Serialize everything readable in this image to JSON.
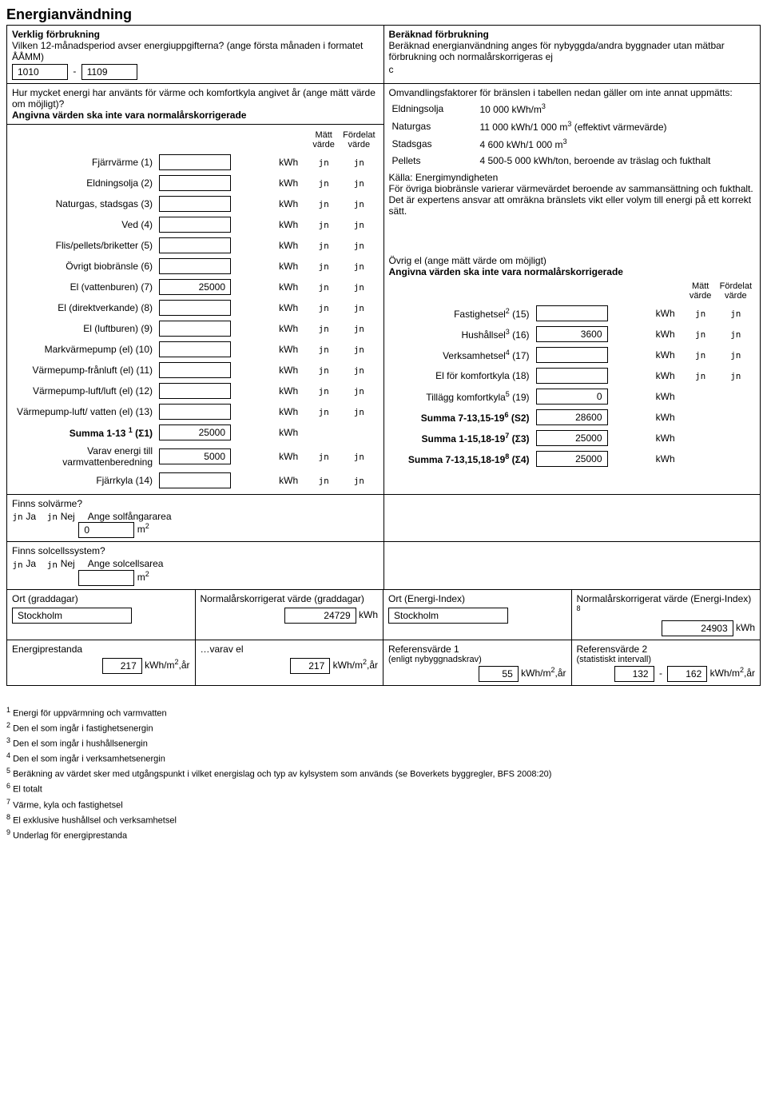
{
  "title": "Energianvändning",
  "left_header": {
    "sub1": "Verklig förbrukning",
    "sub2": "Vilken 12-månadsperiod avser energiuppgifterna? (ange första månaden i formatet ÅÅMM)",
    "period_from": "1010",
    "period_sep": "-",
    "period_to": "1109"
  },
  "right_header": {
    "sub1": "Beräknad förbrukning",
    "sub2": "Beräknad energianvändning anges för nybyggda/andra byggnader utan mätbar förbrukning och normalårskorrigeras ej",
    "mark": "c"
  },
  "left_block2": {
    "line1": "Hur mycket energi har använts för värme och komfortkyla angivet år (ange mätt värde om möjligt)?",
    "line2": "Angivna värden ska inte vara normalårskorrigerade",
    "col_matt": "Mätt värde",
    "col_ford": "Fördelat värde"
  },
  "energy_rows_left": [
    {
      "label": "Fjärrvärme (1)",
      "value": "",
      "unit": "kWh"
    },
    {
      "label": "Eldningsolja (2)",
      "value": "",
      "unit": "kWh"
    },
    {
      "label": "Naturgas, stadsgas (3)",
      "value": "",
      "unit": "kWh"
    },
    {
      "label": "Ved (4)",
      "value": "",
      "unit": "kWh"
    },
    {
      "label": "Flis/pellets/briketter (5)",
      "value": "",
      "unit": "kWh"
    },
    {
      "label": "Övrigt biobränsle (6)",
      "value": "",
      "unit": "kWh"
    },
    {
      "label": "El (vattenburen) (7)",
      "value": "25000",
      "unit": "kWh"
    },
    {
      "label": "El (direktverkande) (8)",
      "value": "",
      "unit": "kWh"
    },
    {
      "label": "El (luftburen) (9)",
      "value": "",
      "unit": "kWh"
    },
    {
      "label": "Markvärmepump (el) (10)",
      "value": "",
      "unit": "kWh"
    },
    {
      "label": "Värmepump-frånluft (el) (11)",
      "value": "",
      "unit": "kWh"
    },
    {
      "label": "Värmepump-luft/luft (el) (12)",
      "value": "",
      "unit": "kWh"
    },
    {
      "label": "Värmepump-luft/ vatten (el) (13)",
      "value": "",
      "unit": "kWh"
    }
  ],
  "summa_left": {
    "label": "Summa 1-13 ",
    "sup": "1",
    "sigma": "(Σ1)",
    "value": "25000",
    "unit": "kWh"
  },
  "varav": {
    "label": "Varav energi till varmvattenberedning",
    "value": "5000",
    "unit": "kWh"
  },
  "fjarrkyla": {
    "label": "Fjärrkyla (14)",
    "value": "",
    "unit": "kWh"
  },
  "conv_header": "Omvandlingsfaktorer för bränslen i tabellen nedan gäller om inte annat uppmätts:",
  "conv_rows": [
    {
      "fuel": "Eldningsolja",
      "factor": "10 000 kWh/m",
      "exp": "3",
      "tail": ""
    },
    {
      "fuel": "Naturgas",
      "factor": "11 000 kWh/1 000 m",
      "exp": "3",
      "tail": " (effektivt värmevärde)"
    },
    {
      "fuel": "Stadsgas",
      "factor": "4 600 kWh/1 000 m",
      "exp": "3",
      "tail": ""
    },
    {
      "fuel": "Pellets",
      "factor": "4 500-5 000 kWh/ton, beroende av träslag och fukthalt",
      "exp": "",
      "tail": ""
    }
  ],
  "source_block": {
    "line1": "Källa: Energimyndigheten",
    "line2": "För övriga biobränsle varierar värmevärdet beroende av sammansättning och fukthalt. Det är expertens ansvar att omräkna bränslets vikt eller volym till energi på ett korrekt sätt."
  },
  "ovrig_el": {
    "line1": "Övrig el (ange mätt värde om möjligt)",
    "line2": "Angivna värden ska inte vara normalårskorrigerade",
    "col_matt": "Mätt värde",
    "col_ford": "Fördelat värde"
  },
  "energy_rows_right": [
    {
      "label": "Fastighetsel",
      "sup": "2",
      "tail": " (15)",
      "value": "",
      "unit": "kWh",
      "radios": true
    },
    {
      "label": "Hushållsel",
      "sup": "3",
      "tail": " (16)",
      "value": "3600",
      "unit": "kWh",
      "radios": true
    },
    {
      "label": "Verksamhetsel",
      "sup": "4",
      "tail": " (17)",
      "value": "",
      "unit": "kWh",
      "radios": true
    },
    {
      "label": "El för komfortkyla (18)",
      "sup": "",
      "tail": "",
      "value": "",
      "unit": "kWh",
      "radios": true
    },
    {
      "label": "Tillägg komfortkyla",
      "sup": "5",
      "tail": " (19)",
      "value": "0",
      "unit": "kWh",
      "radios": false
    },
    {
      "label": "Summa 7-13,15-19",
      "sup": "6",
      "tail": " (S2)",
      "value": "28600",
      "unit": "kWh",
      "radios": false,
      "bold": true
    },
    {
      "label": "Summa 1-15,18-19",
      "sup": "7",
      "tail": " (Σ3)",
      "value": "25000",
      "unit": "kWh",
      "radios": false,
      "bold": true
    },
    {
      "label": "Summa 7-13,15,18-19",
      "sup": "8",
      "tail": " (Σ4)",
      "value": "25000",
      "unit": "kWh",
      "radios": false,
      "bold": true
    }
  ],
  "solvarme": {
    "q": "Finns solvärme?",
    "ja": "Ja",
    "nej": "Nej",
    "area_lbl": "Ange solfångararea",
    "area_val": "0",
    "area_unit": "m",
    "area_exp": "2"
  },
  "solcell": {
    "q": "Finns solcellssystem?",
    "ja": "Ja",
    "nej": "Nej",
    "area_lbl": "Ange solcellsarea",
    "area_val": "",
    "area_unit": "m",
    "area_exp": "2"
  },
  "norm_row": {
    "ort_graddagar_lbl": "Ort (graddagar)",
    "ort_graddagar_val": "Stockholm",
    "norm_graddagar_lbl": "Normalårskorrigerat värde (graddagar)",
    "norm_graddagar_val": "24729",
    "norm_graddagar_unit": "kWh",
    "ort_ei_lbl": "Ort (Energi-Index)",
    "ort_ei_val": "Stockholm",
    "norm_ei_lbl": "Normalårskorrigerat värde (Energi-Index) ",
    "norm_ei_sup": "8",
    "norm_ei_val": "24903",
    "norm_ei_unit": "kWh"
  },
  "perf_row": {
    "ep_lbl": "Energiprestanda",
    "ep_val": "217",
    "ep_unit": "kWh/m",
    "ep_exp": "2",
    "ep_tail": ",år",
    "varav_lbl": "…varav el",
    "varav_val": "217",
    "ref1_lbl": "Referensvärde 1",
    "ref1_sub": "(enligt nybyggnadskrav)",
    "ref1_val": "55",
    "ref2_lbl": "Referensvärde 2",
    "ref2_sub": "(statistiskt intervall)",
    "ref2_from": "132",
    "ref2_sep": "-",
    "ref2_to": "162"
  },
  "footnotes": [
    "Energi för uppvärmning och varmvatten",
    "Den el som ingår i fastighetsenergin",
    "Den el som ingår i hushållsenergin",
    "Den el som ingår i verksamhetsenergin",
    "Beräkning av värdet sker med utgångspunkt i vilket energislag och typ av kylsystem som används (se Boverkets byggregler, BFS 2008:20)",
    "El totalt",
    "Värme, kyla och fastighetsel",
    "El exklusive hushållsel och verksamhetsel",
    "Underlag för energiprestanda"
  ],
  "radio_glyph": "jn"
}
